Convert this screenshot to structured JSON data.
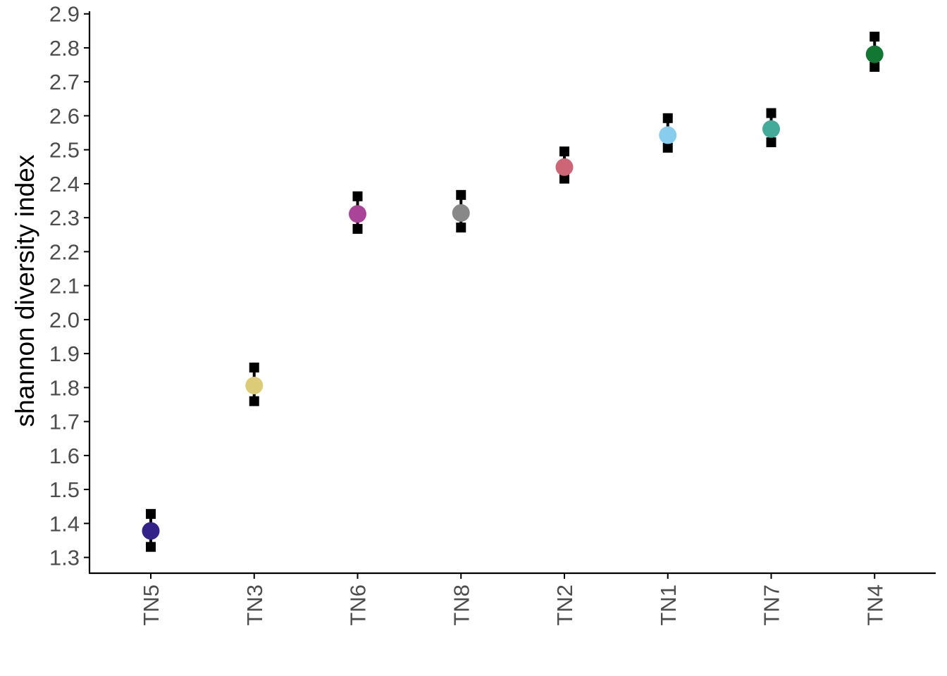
{
  "chart_data": {
    "type": "scatter",
    "ylabel": "shannon diversity index",
    "xlabel": "",
    "categories": [
      "TN5",
      "TN3",
      "TN6",
      "TN8",
      "TN2",
      "TN1",
      "TN7",
      "TN4"
    ],
    "values": [
      1.378,
      1.806,
      2.311,
      2.314,
      2.449,
      2.543,
      2.561,
      2.781
    ],
    "lower": [
      1.331,
      1.76,
      2.267,
      2.271,
      2.415,
      2.506,
      2.522,
      2.744
    ],
    "upper": [
      1.428,
      1.859,
      2.363,
      2.367,
      2.495,
      2.593,
      2.608,
      2.833
    ],
    "colors": [
      "#332288",
      "#DDCC77",
      "#AA4499",
      "#888888",
      "#CC6677",
      "#88CCEE",
      "#44AA99",
      "#117733"
    ],
    "error_marker_color": "#000000",
    "yticks": [
      "1.3",
      "1.4",
      "1.5",
      "1.6",
      "1.7",
      "1.8",
      "1.9",
      "2.0",
      "2.1",
      "2.2",
      "2.3",
      "2.4",
      "2.5",
      "2.6",
      "2.7",
      "2.8",
      "2.9"
    ],
    "ylim": [
      1.255,
      2.905
    ],
    "grid": false,
    "legend": "none"
  }
}
